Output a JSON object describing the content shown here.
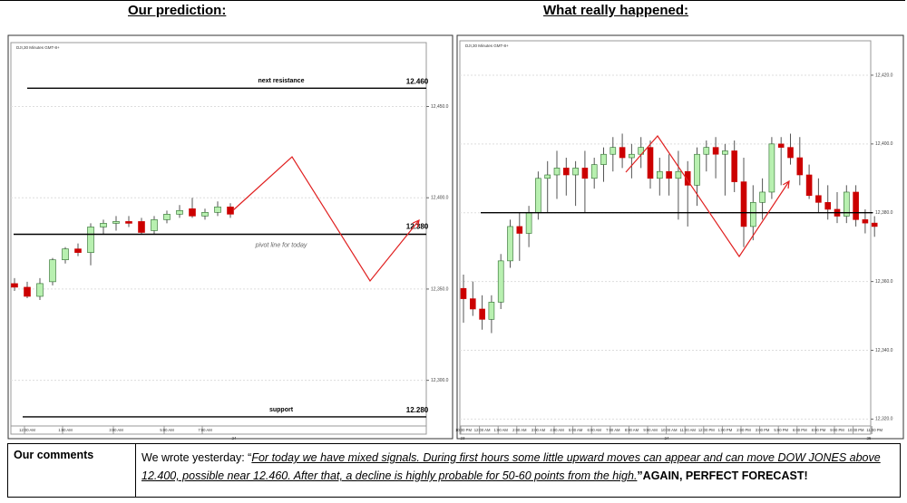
{
  "header": {
    "left": "Our prediction:",
    "right": "What really happened:"
  },
  "chart_data": [
    {
      "type": "candlestick",
      "title": "DJI,30 Minutes GMT-8+",
      "up_color": "#b8f0b0",
      "down_color": "#cc0000",
      "ylim": [
        12275,
        12485
      ],
      "yticks": [
        {
          "value": 12450,
          "label": "12,450.0"
        },
        {
          "value": 12400,
          "label": "12,400.0"
        },
        {
          "value": 12350,
          "label": "12,350.0"
        },
        {
          "value": 12300,
          "label": "12,300.0"
        }
      ],
      "grid": true,
      "categories": [
        null,
        "12:00 AM",
        null,
        null,
        "1:00 AM",
        null,
        null,
        null,
        "3:00 AM",
        null,
        null,
        null,
        "5:00 AM",
        null,
        null,
        "7:00 AM",
        null,
        null
      ],
      "dates": [
        "24"
      ],
      "candles": [
        [
          12353,
          12356,
          12349,
          12351
        ],
        [
          12351,
          12354,
          12345,
          12346
        ],
        [
          12346,
          12356,
          12344,
          12353
        ],
        [
          12354,
          12367,
          12352,
          12366
        ],
        [
          12366,
          12373,
          12364,
          12372
        ],
        [
          12372,
          12375,
          12368,
          12370
        ],
        [
          12370,
          12386,
          12363,
          12384
        ],
        [
          12384,
          12388,
          12380,
          12386
        ],
        [
          12386,
          12390,
          12382,
          12387
        ],
        [
          12387,
          12390,
          12384,
          12386
        ],
        [
          12387,
          12389,
          12380,
          12381
        ],
        [
          12382,
          12390,
          12380,
          12388
        ],
        [
          12388,
          12393,
          12386,
          12391
        ],
        [
          12391,
          12396,
          12389,
          12393
        ],
        [
          12394,
          12400,
          12389,
          12390
        ],
        [
          12390,
          12394,
          12388,
          12392
        ],
        [
          12392,
          12398,
          12390,
          12395
        ],
        [
          12395,
          12397,
          12389,
          12391
        ]
      ],
      "levels": [
        {
          "name": "next resistance",
          "value": 12460,
          "value_label": "12.460"
        },
        {
          "name": "pivot line for today",
          "value": 12380,
          "value_label": "12.380"
        },
        {
          "name": "support",
          "value": 12280,
          "value_label": "12.280"
        }
      ]
    },
    {
      "type": "candlestick",
      "title": "DJI,30 Minutes GMT-8+",
      "up_color": "#b8f0b0",
      "down_color": "#cc0000",
      "ylim": [
        12318,
        12430
      ],
      "yticks": [
        {
          "value": 12420,
          "label": "12,420.0"
        },
        {
          "value": 12400,
          "label": "12,400.0"
        },
        {
          "value": 12380,
          "label": "12,380.0"
        },
        {
          "value": 12360,
          "label": "12,360.0"
        },
        {
          "value": 12340,
          "label": "12,340.0"
        },
        {
          "value": 12320,
          "label": "12,320.0"
        }
      ],
      "grid": true,
      "categories": [
        "10:00 PM",
        null,
        "12:00 AM",
        null,
        "1:00 AM",
        null,
        "2:00 AM",
        null,
        "3:00 AM",
        null,
        "4:00 AM",
        null,
        "5:00 AM",
        null,
        "6:00 AM",
        null,
        "7:00 AM",
        null,
        "8:00 AM",
        null,
        "9:00 AM",
        null,
        "10:00 AM",
        null,
        "11:00 AM",
        null,
        "12:00 PM",
        null,
        "1:00 PM",
        null,
        "2:00 PM",
        null,
        "3:00 PM",
        null,
        "5:00 PM",
        null,
        "6:00 PM",
        null,
        "8:00 PM",
        null,
        "9:00 PM",
        null,
        "10:00 PM",
        null,
        "11:00 PM"
      ],
      "dates": [
        "23",
        "24",
        "25"
      ],
      "candles": [
        [
          12358,
          12362,
          12348,
          12355
        ],
        [
          12355,
          12360,
          12350,
          12352
        ],
        [
          12352,
          12356,
          12346,
          12349
        ],
        [
          12349,
          12356,
          12345,
          12354
        ],
        [
          12354,
          12368,
          12352,
          12366
        ],
        [
          12366,
          12378,
          12364,
          12376
        ],
        [
          12376,
          12380,
          12366,
          12374
        ],
        [
          12374,
          12382,
          12370,
          12380
        ],
        [
          12380,
          12392,
          12378,
          12390
        ],
        [
          12390,
          12395,
          12380,
          12391
        ],
        [
          12391,
          12398,
          12384,
          12393
        ],
        [
          12393,
          12396,
          12385,
          12391
        ],
        [
          12391,
          12395,
          12382,
          12393
        ],
        [
          12393,
          12398,
          12380,
          12390
        ],
        [
          12390,
          12396,
          12387,
          12394
        ],
        [
          12394,
          12399,
          12389,
          12397
        ],
        [
          12397,
          12402,
          12392,
          12399
        ],
        [
          12399,
          12403,
          12393,
          12396
        ],
        [
          12396,
          12400,
          12390,
          12397
        ],
        [
          12397,
          12402,
          12393,
          12399
        ],
        [
          12399,
          12401,
          12387,
          12390
        ],
        [
          12390,
          12396,
          12385,
          12392
        ],
        [
          12392,
          12397,
          12385,
          12390
        ],
        [
          12390,
          12398,
          12378,
          12392
        ],
        [
          12392,
          12395,
          12376,
          12388
        ],
        [
          12388,
          12399,
          12382,
          12397
        ],
        [
          12397,
          12401,
          12392,
          12399
        ],
        [
          12399,
          12402,
          12390,
          12397
        ],
        [
          12397,
          12400,
          12385,
          12398
        ],
        [
          12398,
          12401,
          12386,
          12389
        ],
        [
          12389,
          12396,
          12370,
          12376
        ],
        [
          12376,
          12388,
          12372,
          12383
        ],
        [
          12383,
          12390,
          12378,
          12386
        ],
        [
          12386,
          12402,
          12384,
          12400
        ],
        [
          12400,
          12402,
          12388,
          12399
        ],
        [
          12399,
          12403,
          12394,
          12396
        ],
        [
          12396,
          12402,
          12388,
          12391
        ],
        [
          12391,
          12394,
          12384,
          12385
        ],
        [
          12385,
          12390,
          12380,
          12383
        ],
        [
          12383,
          12388,
          12378,
          12381
        ],
        [
          12381,
          12386,
          12377,
          12379
        ],
        [
          12379,
          12388,
          12377,
          12386
        ],
        [
          12386,
          12388,
          12376,
          12378
        ],
        [
          12378,
          12381,
          12374,
          12377
        ],
        [
          12377,
          12379,
          12373,
          12376
        ]
      ],
      "levels": [
        {
          "value": 12380
        }
      ]
    }
  ],
  "comments": {
    "label": "Our comments",
    "intro": "We wrote yesterday: “",
    "quote": "For today we have mixed signals. During first hours some little upward moves can appear and can move DOW JONES above 12.400, possible near 12.460. After that, a decline is highly probable for 50-60 points from the high.",
    "emphasis": "”AGAIN, PERFECT FORECAST!"
  }
}
